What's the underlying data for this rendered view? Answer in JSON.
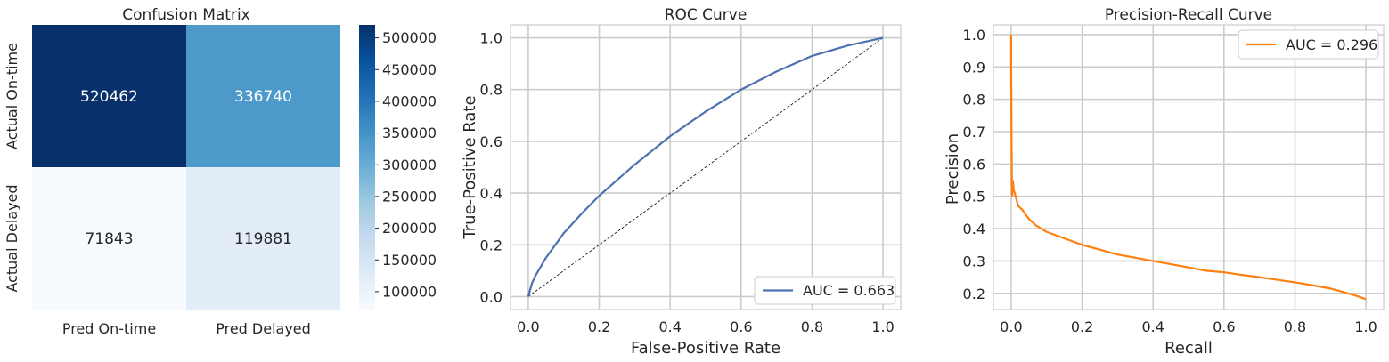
{
  "chart_data": [
    {
      "type": "heatmap",
      "title": "Confusion Matrix",
      "x_categories": [
        "Pred On-time",
        "Pred Delayed"
      ],
      "y_categories": [
        "Actual On-time",
        "Actual Delayed"
      ],
      "values": [
        [
          520462,
          336740
        ],
        [
          71843,
          119881
        ]
      ],
      "colormap": "Blues",
      "colorbar": {
        "range": [
          71843,
          520462
        ],
        "ticks": [
          100000,
          150000,
          200000,
          250000,
          300000,
          350000,
          400000,
          450000,
          500000
        ],
        "tick_labels": [
          "100000",
          "150000",
          "200000",
          "250000",
          "300000",
          "350000",
          "400000",
          "450000",
          "500000"
        ]
      }
    },
    {
      "type": "line",
      "title": "ROC Curve",
      "xlabel": "False-Positive Rate",
      "ylabel": "True-Positive Rate",
      "xlim": [
        -0.05,
        1.05
      ],
      "ylim": [
        -0.05,
        1.05
      ],
      "xticks": [
        "0.0",
        "0.2",
        "0.4",
        "0.6",
        "0.8",
        "1.0"
      ],
      "yticks": [
        "0.0",
        "0.2",
        "0.4",
        "0.6",
        "0.8",
        "1.0"
      ],
      "grid": true,
      "legend_position": "lower-right",
      "series": [
        {
          "name": "AUC = 0.663",
          "color": "#4c72b0",
          "x": [
            0,
            0.01,
            0.02,
            0.05,
            0.1,
            0.15,
            0.2,
            0.3,
            0.4,
            0.5,
            0.6,
            0.7,
            0.8,
            0.9,
            1.0
          ],
          "y": [
            0,
            0.05,
            0.08,
            0.15,
            0.245,
            0.32,
            0.39,
            0.51,
            0.62,
            0.715,
            0.8,
            0.87,
            0.93,
            0.97,
            1.0
          ]
        }
      ],
      "reference_line": {
        "x": [
          0,
          1
        ],
        "y": [
          0,
          1
        ],
        "style": "dashed",
        "color": "#000000"
      }
    },
    {
      "type": "line",
      "title": "Precision-Recall Curve",
      "xlabel": "Recall",
      "ylabel": "Precision",
      "xlim": [
        -0.05,
        1.05
      ],
      "ylim": [
        0.15,
        1.03
      ],
      "xticks": [
        "0.0",
        "0.2",
        "0.4",
        "0.6",
        "0.8",
        "1.0"
      ],
      "yticks": [
        "0.2",
        "0.3",
        "0.4",
        "0.5",
        "0.6",
        "0.7",
        "0.8",
        "0.9",
        "1.0"
      ],
      "grid": true,
      "legend_position": "upper-right",
      "series": [
        {
          "name": "AUC = 0.296",
          "color": "#ff7f0e",
          "x": [
            0.0,
            0.0,
            0.001,
            0.002,
            0.003,
            0.003,
            0.005,
            0.007,
            0.01,
            0.015,
            0.02,
            0.03,
            0.05,
            0.07,
            0.1,
            0.15,
            0.2,
            0.25,
            0.3,
            0.35,
            0.4,
            0.45,
            0.5,
            0.55,
            0.6,
            0.65,
            0.7,
            0.75,
            0.8,
            0.85,
            0.9,
            0.95,
            0.98,
            1.0
          ],
          "y": [
            1.0,
            0.9,
            0.7,
            0.55,
            0.5,
            0.53,
            0.55,
            0.52,
            0.51,
            0.49,
            0.47,
            0.46,
            0.43,
            0.41,
            0.39,
            0.37,
            0.35,
            0.335,
            0.32,
            0.31,
            0.3,
            0.29,
            0.28,
            0.27,
            0.265,
            0.257,
            0.25,
            0.242,
            0.234,
            0.225,
            0.215,
            0.2,
            0.19,
            0.182
          ]
        }
      ]
    }
  ]
}
